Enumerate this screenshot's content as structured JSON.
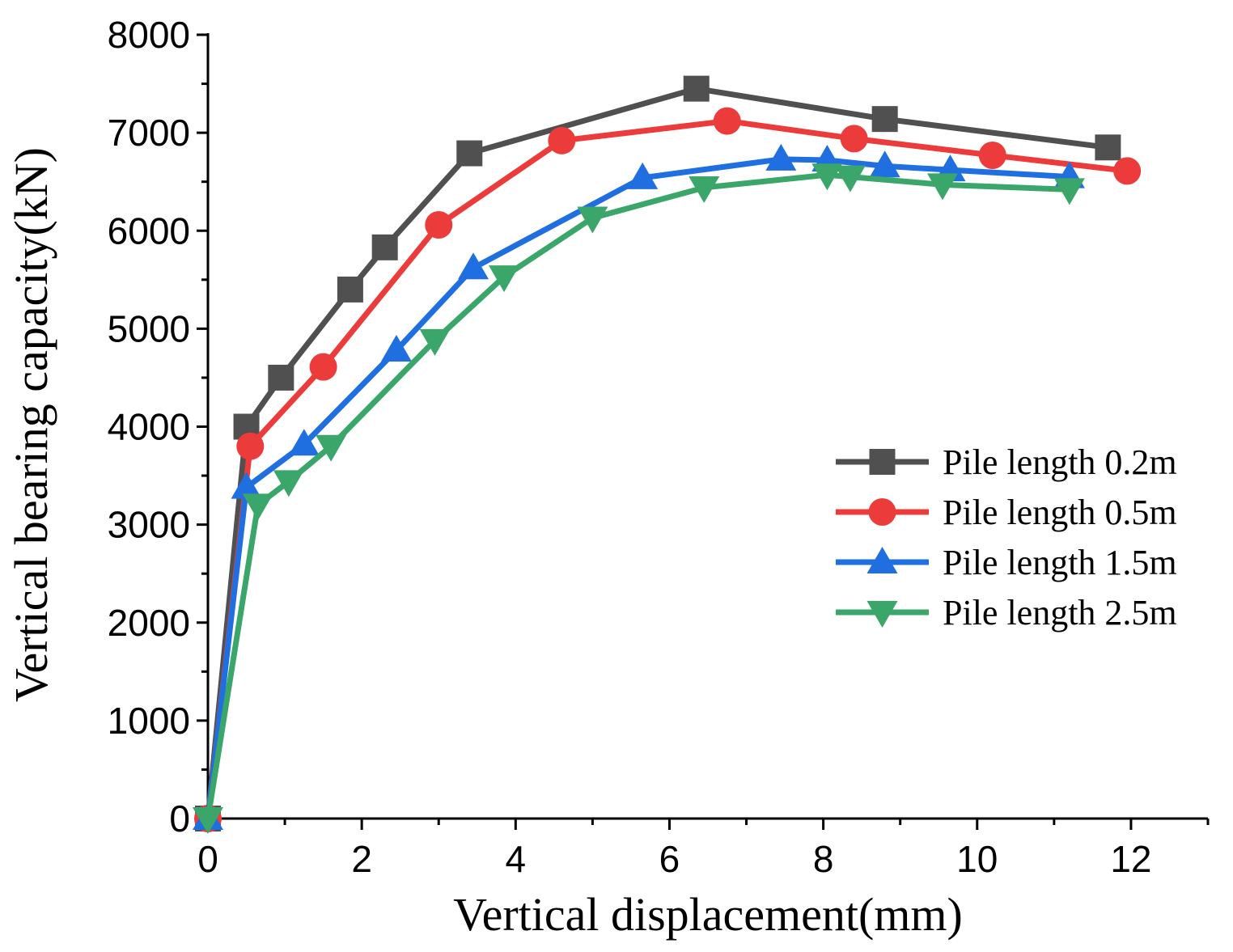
{
  "chart_data": {
    "type": "line",
    "title": "",
    "xlabel": "Vertical displacement(mm)",
    "ylabel": "Vertical bearing capacity(kN)",
    "xlim": [
      0,
      13
    ],
    "ylim": [
      0,
      8000
    ],
    "xticks": [
      0,
      2,
      4,
      6,
      8,
      10,
      12
    ],
    "yticks": [
      0,
      1000,
      2000,
      3000,
      4000,
      5000,
      6000,
      7000,
      8000
    ],
    "grid": false,
    "legend_position": "right",
    "series": [
      {
        "name": "Pile length 0.2m",
        "color": "#505050",
        "marker": "square",
        "x": [
          0,
          0.5,
          0.95,
          1.85,
          2.3,
          3.4,
          6.35,
          8.8,
          11.7
        ],
        "y": [
          0,
          4000,
          4500,
          5400,
          5830,
          6790,
          7450,
          7140,
          6850
        ]
      },
      {
        "name": "Pile length 0.5m",
        "color": "#ec3b3b",
        "marker": "circle",
        "x": [
          0,
          0.55,
          1.5,
          3.0,
          4.6,
          6.75,
          8.4,
          10.2,
          11.95
        ],
        "y": [
          0,
          3800,
          4610,
          6060,
          6920,
          7120,
          6940,
          6770,
          6610
        ]
      },
      {
        "name": "Pile length 1.5m",
        "color": "#1f6fe0",
        "marker": "triangle-up",
        "x": [
          0,
          0.5,
          1.25,
          2.45,
          3.45,
          5.65,
          7.45,
          8.05,
          8.8,
          9.65,
          11.2
        ],
        "y": [
          0,
          3380,
          3820,
          4780,
          5620,
          6540,
          6730,
          6720,
          6660,
          6620,
          6550
        ]
      },
      {
        "name": "Pile length 2.5m",
        "color": "#3aa66a",
        "marker": "triangle-down",
        "x": [
          0,
          0.65,
          1.05,
          1.6,
          2.95,
          3.85,
          5.0,
          6.45,
          8.05,
          8.35,
          9.55,
          11.2
        ],
        "y": [
          0,
          3200,
          3440,
          3800,
          4880,
          5530,
          6130,
          6440,
          6570,
          6550,
          6470,
          6420
        ]
      }
    ]
  }
}
